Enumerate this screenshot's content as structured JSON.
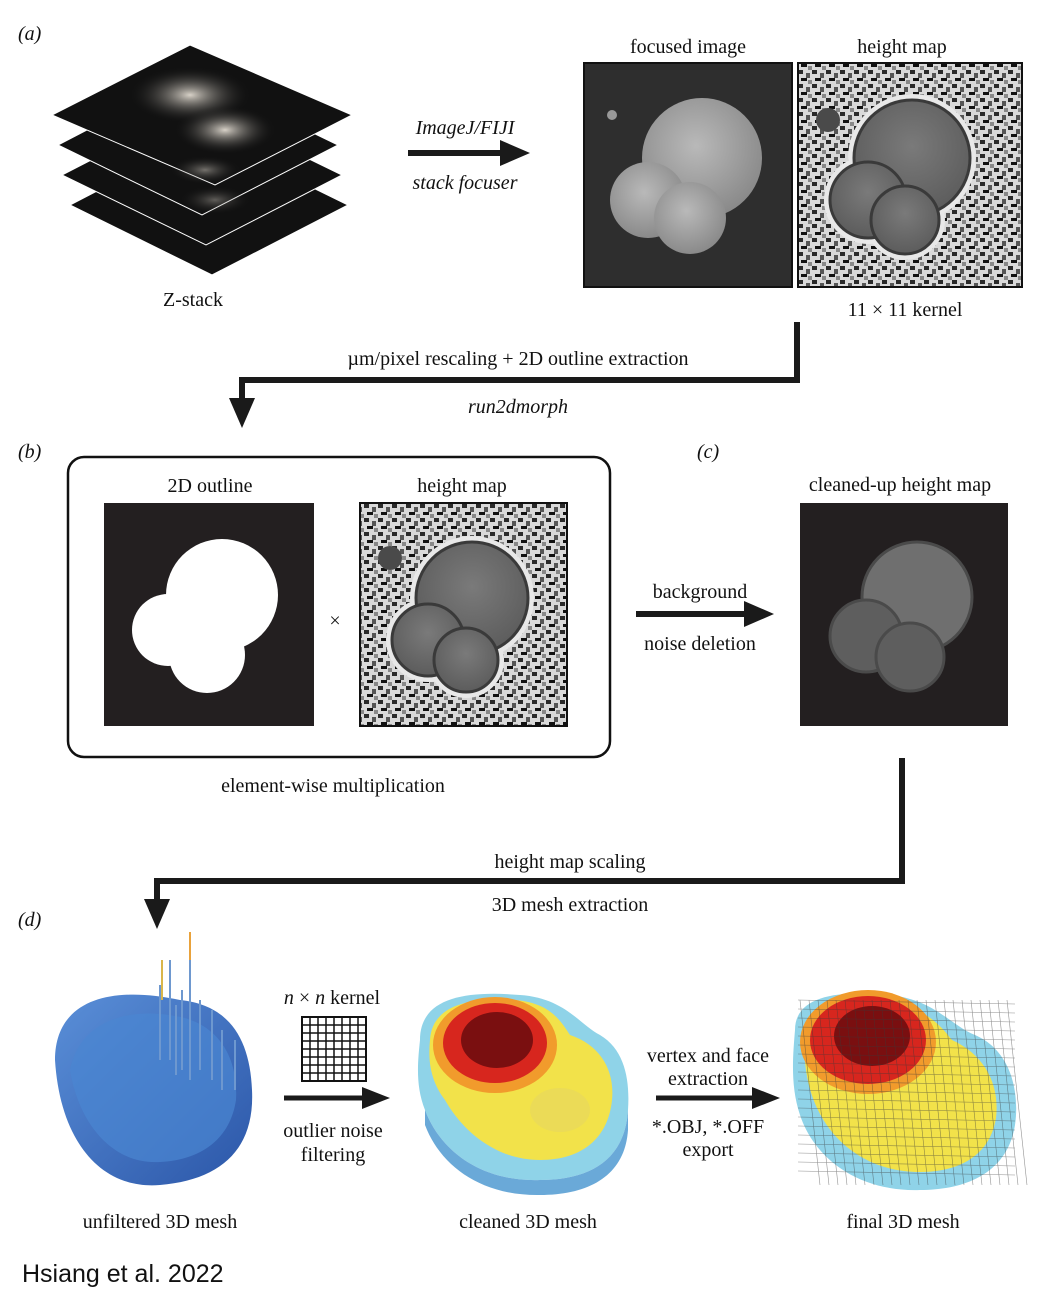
{
  "panels": {
    "a": {
      "tag": "(a)",
      "zstack_label": "Z-stack",
      "arrow_top": "ImageJ/FIJI",
      "arrow_bottom": "stack focuser",
      "focused_label": "focused image",
      "height_label": "height map",
      "kernel_label": "11 × 11 kernel"
    },
    "connector1": {
      "top": "µm/pixel rescaling + 2D outline extraction",
      "bottom": "run2dmorph"
    },
    "b": {
      "tag": "(b)",
      "outline_label": "2D outline",
      "height_label": "height map",
      "times": "×",
      "caption": "element-wise multiplication"
    },
    "c": {
      "tag": "(c)",
      "label": "cleaned-up height map",
      "arrow_top": "background",
      "arrow_bottom": "noise deletion"
    },
    "connector2": {
      "top": "height map scaling",
      "bottom": "3D mesh extraction"
    },
    "d": {
      "tag": "(d)",
      "kernel_label_n1": "n",
      "kernel_label_x": " × ",
      "kernel_label_n2": "n",
      "kernel_label_rest": " kernel",
      "filter_l1": "outlier noise",
      "filter_l2": "filtering",
      "vf_l1": "vertex and face",
      "vf_l2": "extraction",
      "exp_l1": "*.OBJ, *.OFF",
      "exp_l2": "export",
      "unfiltered_label": "unfiltered 3D mesh",
      "cleaned_label": "cleaned 3D mesh",
      "final_label": "final 3D mesh"
    }
  },
  "credit": "Hsiang et al. 2022",
  "colors": {
    "arrow": "#1a1a1a",
    "mesh_blue": "#3d6fc0",
    "mesh_red": "#d7261e",
    "mesh_darkred": "#7a0f10",
    "mesh_yellow": "#f2e24a",
    "mesh_cyan": "#8fd3e8"
  }
}
